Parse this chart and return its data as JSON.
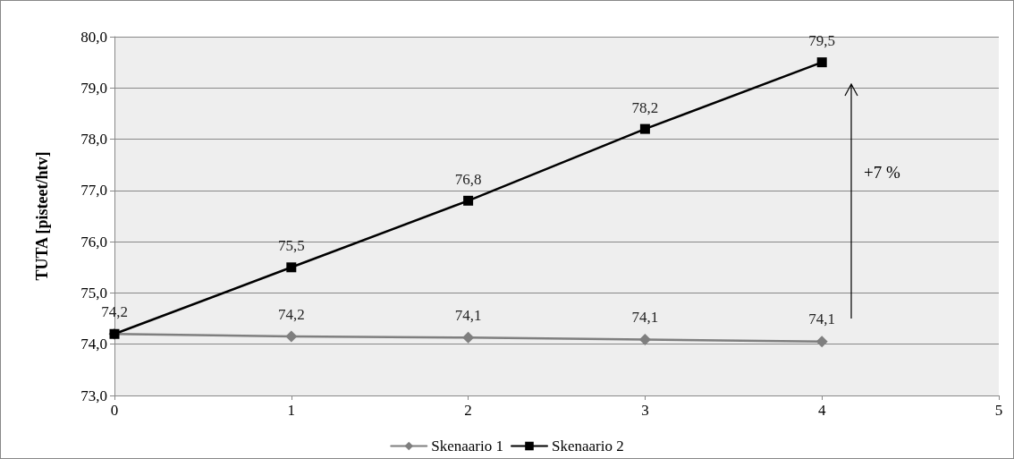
{
  "chart_data": {
    "type": "line",
    "ylabel": "TUTA [pisteet/htv]",
    "x": [
      0,
      1,
      2,
      3,
      4
    ],
    "series": [
      {
        "name": "Skenaario 1",
        "color": "#7f7f7f",
        "marker": "diamond",
        "values": [
          74.2,
          74.15,
          74.13,
          74.09,
          74.05
        ],
        "value_labels": [
          "74,2",
          "74,2",
          "74,1",
          "74,1",
          "74,1"
        ]
      },
      {
        "name": "Skenaario 2",
        "color": "#000000",
        "marker": "square",
        "values": [
          74.2,
          75.5,
          76.8,
          78.2,
          79.5
        ],
        "value_labels": [
          null,
          "75,5",
          "76,8",
          "78,2",
          "79,5"
        ]
      }
    ],
    "xlim": [
      0,
      5
    ],
    "xticks": [
      0,
      1,
      2,
      3,
      4,
      5
    ],
    "ylim": [
      73,
      80
    ],
    "yticks": [
      {
        "value": 73,
        "label": "73,0"
      },
      {
        "value": 74,
        "label": "74,0"
      },
      {
        "value": 75,
        "label": "75,0"
      },
      {
        "value": 76,
        "label": "76,0"
      },
      {
        "value": 77,
        "label": "77,0"
      },
      {
        "value": 78,
        "label": "78,0"
      },
      {
        "value": 79,
        "label": "79,0"
      },
      {
        "value": 80,
        "label": "80,0"
      }
    ],
    "grid": "y",
    "legend": "bottom",
    "annotations": [
      "+7 %"
    ]
  }
}
